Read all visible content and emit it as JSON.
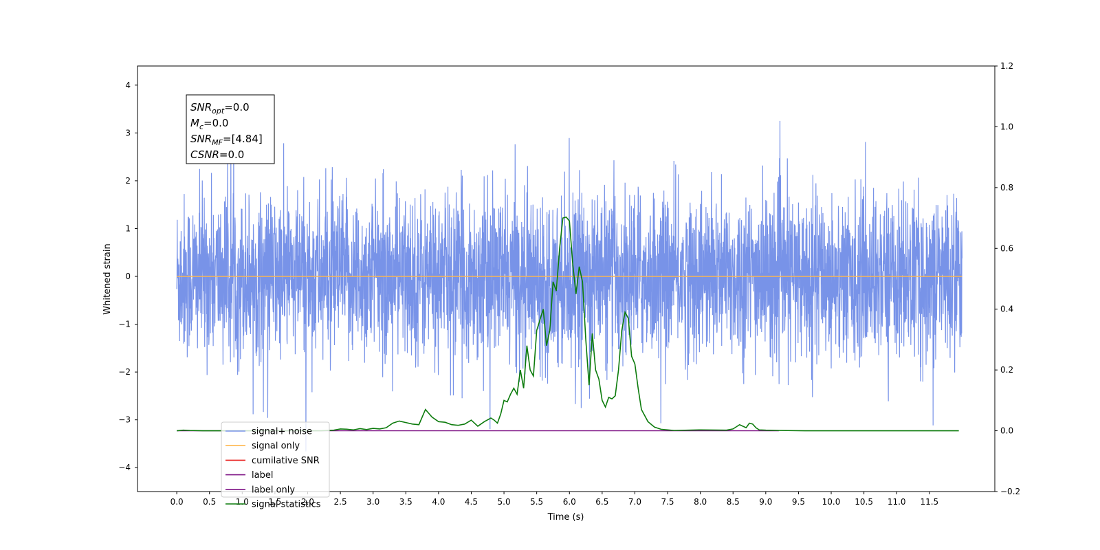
{
  "chart_data": {
    "type": "line",
    "title": "",
    "xlabel": "Time (s)",
    "ylabel": "Whitened strain",
    "xlim": [
      -0.6,
      12.5
    ],
    "ylim": [
      -4.5,
      4.4
    ],
    "y2lim": [
      -0.2,
      1.2
    ],
    "x_ticks": [
      "0.0",
      "0.5",
      "1.0",
      "1.5",
      "2.0",
      "2.5",
      "3.0",
      "3.5",
      "4.0",
      "4.5",
      "5.0",
      "5.5",
      "6.0",
      "6.5",
      "7.0",
      "7.5",
      "8.0",
      "8.5",
      "9.0",
      "9.5",
      "10.0",
      "10.5",
      "11.0",
      "11.5"
    ],
    "y_ticks": [
      "4",
      "3",
      "2",
      "1",
      "0",
      "−1",
      "−2",
      "−3",
      "−4"
    ],
    "y2_ticks": [
      "1.2",
      "1.0",
      "0.8",
      "0.6",
      "0.4",
      "0.2",
      "0.0",
      "−0.2"
    ],
    "legend_placement": "lower-left",
    "annotation": {
      "lines": [
        {
          "base": "SNR",
          "sub": "opt",
          "value": "=0.0"
        },
        {
          "base": "M",
          "sub": "c",
          "value": "=0.0"
        },
        {
          "base": "SNR",
          "sub": "MF",
          "value": "=[4.84]"
        },
        {
          "base": "CSNR",
          "sub": "",
          "value": "=0.0"
        }
      ]
    },
    "series": [
      {
        "name": "signal+ noise",
        "color": "#7893e8",
        "axis": "left",
        "kind": "noise",
        "x_range": [
          0.0,
          12.0
        ],
        "y_range": [
          -4.1,
          4.05
        ]
      },
      {
        "name": "signal only",
        "color": "#ffb74d",
        "axis": "left",
        "x": [
          0.0,
          12.0
        ],
        "y": [
          0.0,
          0.0
        ]
      },
      {
        "name": "cumilative SNR",
        "color": "#e8201e",
        "axis": "left",
        "x": [],
        "y": []
      },
      {
        "name": "label",
        "color": "#7d1184",
        "axis": "right",
        "x": [
          0.0,
          9.2
        ],
        "y": [
          0.0,
          0.0
        ]
      },
      {
        "name": "label only",
        "color": "#7d1184",
        "axis": "right",
        "x": [],
        "y": []
      },
      {
        "name": "signal statistics",
        "color": "#0c7b0c",
        "axis": "right",
        "x": [
          0.0,
          0.1,
          0.2,
          0.4,
          0.6,
          0.8,
          1.0,
          1.2,
          1.4,
          1.6,
          1.8,
          2.0,
          2.2,
          2.4,
          2.5,
          2.6,
          2.7,
          2.8,
          2.9,
          3.0,
          3.1,
          3.2,
          3.3,
          3.4,
          3.5,
          3.6,
          3.7,
          3.8,
          3.9,
          4.0,
          4.1,
          4.2,
          4.3,
          4.4,
          4.5,
          4.6,
          4.7,
          4.8,
          4.85,
          4.9,
          4.95,
          5.0,
          5.05,
          5.1,
          5.15,
          5.2,
          5.25,
          5.3,
          5.35,
          5.4,
          5.45,
          5.5,
          5.6,
          5.65,
          5.7,
          5.75,
          5.8,
          5.85,
          5.9,
          5.95,
          6.0,
          6.05,
          6.1,
          6.15,
          6.2,
          6.25,
          6.3,
          6.35,
          6.4,
          6.45,
          6.5,
          6.55,
          6.6,
          6.65,
          6.7,
          6.75,
          6.8,
          6.85,
          6.9,
          6.95,
          7.0,
          7.05,
          7.1,
          7.2,
          7.3,
          7.4,
          7.6,
          8.0,
          8.4,
          8.5,
          8.6,
          8.7,
          8.75,
          8.8,
          8.85,
          8.9,
          9.0,
          9.2,
          9.6,
          10.0,
          11.0,
          11.5,
          11.95
        ],
        "y": [
          0.0,
          0.002,
          0.001,
          0.0,
          0.0,
          0.0,
          0.0,
          0.0,
          0.0,
          0.0,
          0.0,
          0.0,
          0.0,
          0.002,
          0.006,
          0.005,
          0.003,
          0.007,
          0.004,
          0.008,
          0.006,
          0.01,
          0.025,
          0.032,
          0.027,
          0.022,
          0.02,
          0.07,
          0.045,
          0.03,
          0.028,
          0.02,
          0.018,
          0.022,
          0.035,
          0.015,
          0.03,
          0.042,
          0.035,
          0.025,
          0.055,
          0.1,
          0.095,
          0.12,
          0.14,
          0.12,
          0.2,
          0.14,
          0.28,
          0.2,
          0.18,
          0.33,
          0.4,
          0.28,
          0.33,
          0.49,
          0.46,
          0.6,
          0.7,
          0.703,
          0.69,
          0.55,
          0.45,
          0.54,
          0.49,
          0.3,
          0.15,
          0.32,
          0.2,
          0.17,
          0.1,
          0.078,
          0.11,
          0.105,
          0.115,
          0.2,
          0.33,
          0.39,
          0.37,
          0.245,
          0.22,
          0.14,
          0.07,
          0.03,
          0.012,
          0.005,
          0.001,
          0.003,
          0.002,
          0.006,
          0.02,
          0.01,
          0.025,
          0.022,
          0.01,
          0.003,
          0.002,
          0.001,
          0.0,
          0.0,
          0.0,
          0.0,
          0.0
        ]
      }
    ]
  }
}
